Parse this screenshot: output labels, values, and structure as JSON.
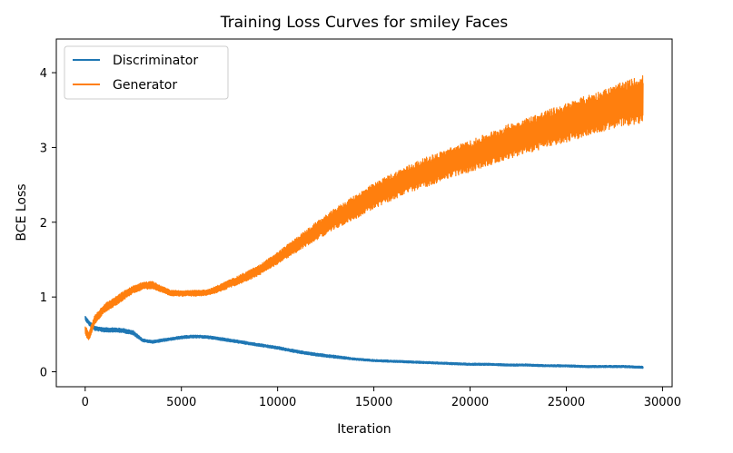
{
  "chart_data": {
    "type": "line",
    "title": "Training Loss Curves for smiley Faces",
    "xlabel": "Iteration",
    "ylabel": "BCE Loss",
    "xlim": [
      -1500,
      30500
    ],
    "ylim": [
      -0.2,
      4.45
    ],
    "xticks": [
      0,
      5000,
      10000,
      15000,
      20000,
      25000,
      30000
    ],
    "xtick_labels": [
      "0",
      "5000",
      "10000",
      "15000",
      "20000",
      "25000",
      "30000"
    ],
    "yticks": [
      0,
      1,
      2,
      3,
      4
    ],
    "ytick_labels": [
      "0",
      "1",
      "2",
      "3",
      "4"
    ],
    "grid": false,
    "legend_position": "top-left",
    "series": [
      {
        "name": "Discriminator",
        "color": "#1f77b4",
        "x": [
          0,
          200,
          500,
          1000,
          1500,
          2000,
          2500,
          3000,
          3500,
          4000,
          4500,
          5000,
          5500,
          6000,
          6500,
          7000,
          8000,
          9000,
          10000,
          11000,
          12000,
          13000,
          14000,
          15000,
          16000,
          17000,
          18000,
          19000,
          20000,
          21000,
          22000,
          23000,
          24000,
          25000,
          26000,
          27000,
          28000,
          29000
        ],
        "y": [
          0.72,
          0.65,
          0.58,
          0.56,
          0.56,
          0.55,
          0.52,
          0.42,
          0.4,
          0.42,
          0.44,
          0.46,
          0.47,
          0.47,
          0.46,
          0.44,
          0.4,
          0.36,
          0.32,
          0.27,
          0.23,
          0.2,
          0.17,
          0.15,
          0.14,
          0.13,
          0.12,
          0.11,
          0.1,
          0.1,
          0.09,
          0.09,
          0.08,
          0.08,
          0.07,
          0.07,
          0.07,
          0.06
        ],
        "band": [
          0.03,
          0.03,
          0.03,
          0.03,
          0.03,
          0.03,
          0.03,
          0.02,
          0.02,
          0.02,
          0.02,
          0.02,
          0.02,
          0.02,
          0.02,
          0.02,
          0.02,
          0.02,
          0.02,
          0.02,
          0.02,
          0.02,
          0.015,
          0.015,
          0.015,
          0.015,
          0.015,
          0.015,
          0.015,
          0.015,
          0.015,
          0.015,
          0.015,
          0.015,
          0.015,
          0.015,
          0.015,
          0.015
        ]
      },
      {
        "name": "Generator",
        "color": "#ff7f0e",
        "x": [
          0,
          200,
          500,
          1000,
          1500,
          2000,
          2500,
          3000,
          3500,
          4000,
          4500,
          5000,
          5500,
          6000,
          6500,
          7000,
          8000,
          9000,
          10000,
          11000,
          12000,
          13000,
          14000,
          15000,
          16000,
          17000,
          18000,
          19000,
          20000,
          21000,
          22000,
          23000,
          24000,
          25000,
          26000,
          27000,
          28000,
          29000
        ],
        "y": [
          0.55,
          0.48,
          0.7,
          0.85,
          0.93,
          1.02,
          1.1,
          1.15,
          1.16,
          1.1,
          1.05,
          1.05,
          1.05,
          1.05,
          1.07,
          1.12,
          1.23,
          1.35,
          1.52,
          1.7,
          1.88,
          2.05,
          2.2,
          2.35,
          2.48,
          2.6,
          2.7,
          2.8,
          2.88,
          2.98,
          3.08,
          3.16,
          3.25,
          3.33,
          3.42,
          3.5,
          3.58,
          3.65
        ],
        "band": [
          0.06,
          0.06,
          0.06,
          0.06,
          0.06,
          0.06,
          0.05,
          0.05,
          0.05,
          0.04,
          0.04,
          0.04,
          0.04,
          0.04,
          0.04,
          0.05,
          0.06,
          0.07,
          0.08,
          0.1,
          0.12,
          0.14,
          0.16,
          0.17,
          0.18,
          0.19,
          0.2,
          0.2,
          0.21,
          0.22,
          0.23,
          0.24,
          0.25,
          0.26,
          0.27,
          0.28,
          0.3,
          0.32
        ]
      }
    ]
  }
}
